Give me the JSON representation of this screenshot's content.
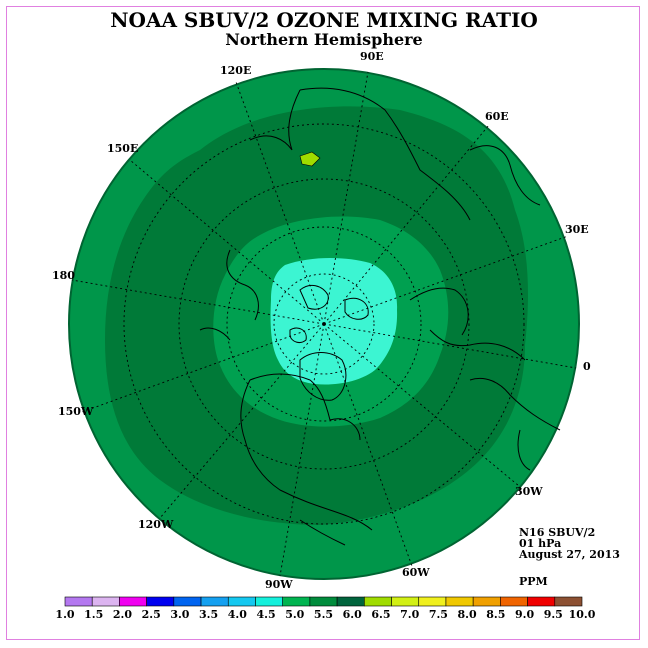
{
  "title": "NOAA SBUV/2 OZONE MIXING RATIO",
  "subtitle": "Northern Hemisphere",
  "info": {
    "instrument": "N16 SBUV/2",
    "pressure": "01 hPa",
    "date": "August 27, 2013",
    "unit": "PPM"
  },
  "longitude_labels": [
    "90E",
    "60E",
    "30E",
    "0",
    "30W",
    "60W",
    "90W",
    "120W",
    "150W",
    "180",
    "150E",
    "120E"
  ],
  "colorbar": {
    "ticks": [
      "1.0",
      "1.5",
      "2.0",
      "2.5",
      "3.0",
      "3.5",
      "4.0",
      "4.5",
      "5.0",
      "5.5",
      "6.0",
      "6.5",
      "7.0",
      "7.5",
      "8.0",
      "8.5",
      "9.0",
      "9.5",
      "10.0"
    ],
    "colors": [
      "#b478f0",
      "#dcb4f0",
      "#f000f0",
      "#0000f0",
      "#0064f0",
      "#14a0f0",
      "#14c8f0",
      "#14f0dc",
      "#00b450",
      "#008c3c",
      "#00643c",
      "#a0dc00",
      "#d2f014",
      "#f0f01e",
      "#f0c800",
      "#f0a000",
      "#f06400",
      "#f00000",
      "#8c5032"
    ]
  },
  "map_fields": {
    "outer_ring_value_range": "5.0-5.5",
    "band_value_range": "5.5-6.0",
    "inner_ring_value_range": "5.0-5.5",
    "polar_cap_value_range": "4.5-5.0",
    "local_max_value_range": "6.0-6.5"
  }
}
